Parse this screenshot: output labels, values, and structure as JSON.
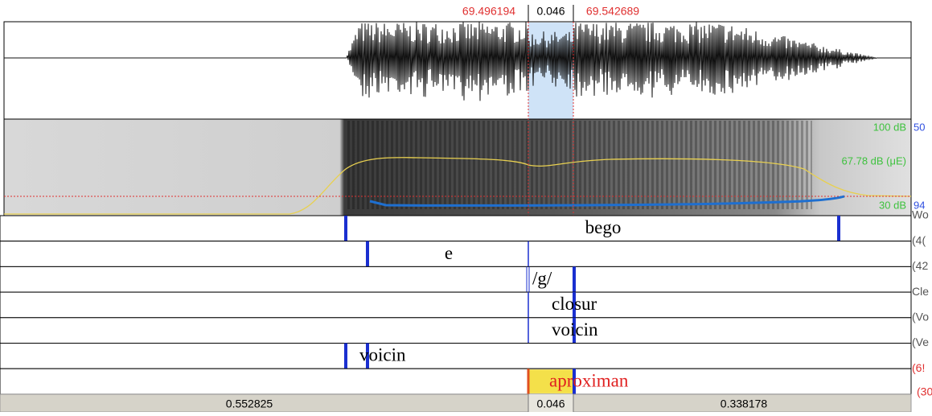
{
  "selection": {
    "start": "69.496194",
    "duration": "0.046",
    "end": "69.542689"
  },
  "spectrogram": {
    "max_db": "100 dB",
    "max_freq": "50",
    "intensity": "67.78 dB (μE)",
    "min_db": "30 dB",
    "min_freq": "94"
  },
  "tiers": [
    {
      "label": "bego",
      "side": "Wo"
    },
    {
      "label": "e",
      "side": "(4("
    },
    {
      "label": "/g/",
      "side": "(42"
    },
    {
      "label": "closur",
      "side": "Cle"
    },
    {
      "label": "voicin",
      "side": "(Vo"
    },
    {
      "label": "voicin",
      "side": "(Ve"
    },
    {
      "label": "aproximan",
      "side": "(6!"
    }
  ],
  "extra_side": "(30",
  "durations": [
    "0.552825",
    "0.046",
    "0.338178"
  ]
}
